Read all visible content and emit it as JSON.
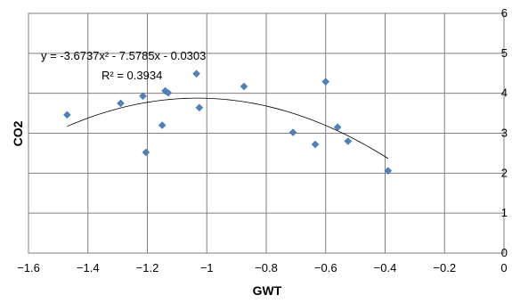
{
  "chart_data": {
    "type": "scatter",
    "title": "",
    "xlabel": "GWT",
    "ylabel": "CO2",
    "xlim": [
      -1.6,
      0
    ],
    "ylim": [
      0,
      6
    ],
    "x_ticks": [
      -1.6,
      -1.4,
      -1.2,
      -1,
      -0.8,
      -0.6,
      -0.4,
      -0.2,
      0
    ],
    "x_tick_labels": [
      "−1.6",
      "−1.4",
      "−1.2",
      "−1",
      "−0.8",
      "−0.6",
      "−0.4",
      "−0.2",
      "0"
    ],
    "y_ticks": [
      0,
      1,
      2,
      3,
      4,
      5,
      6
    ],
    "y_tick_labels": [
      "0",
      "1",
      "2",
      "3",
      "4",
      "5",
      "6"
    ],
    "grid": "horizontal and vertical",
    "y_axis_side": "right",
    "series": [
      {
        "marker": "diamond",
        "color": "#4F81BD",
        "points": [
          [
            -1.47,
            3.46
          ],
          [
            -1.29,
            3.75
          ],
          [
            -1.215,
            3.93
          ],
          [
            -1.205,
            2.52
          ],
          [
            -1.15,
            3.2
          ],
          [
            -1.14,
            4.06
          ],
          [
            -1.13,
            4.01
          ],
          [
            -1.035,
            4.49
          ],
          [
            -1.025,
            3.64
          ],
          [
            -0.875,
            4.17
          ],
          [
            -0.71,
            3.02
          ],
          [
            -0.635,
            2.72
          ],
          [
            -0.6,
            4.29
          ],
          [
            -0.56,
            3.15
          ],
          [
            -0.525,
            2.8
          ],
          [
            -0.39,
            2.06
          ]
        ]
      }
    ],
    "trendline": {
      "type": "polynomial",
      "coefficients": [
        -3.6737,
        -7.5785,
        -0.0303
      ],
      "x_range": [
        -1.47,
        -0.39
      ],
      "color": "#000000"
    },
    "annotations": {
      "equation": "y = -3.6737x² - 7.5785x - 0.0303",
      "r_squared": "R² = 0.3934"
    }
  }
}
